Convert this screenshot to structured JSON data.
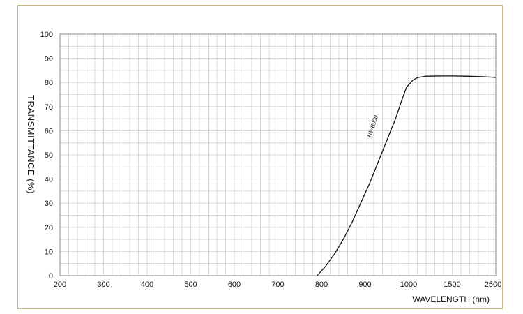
{
  "chart_data": {
    "type": "line",
    "title": "",
    "xlabel": "WAVELENGTH (nm)",
    "ylabel": "TRANSMITTANCE  (%)",
    "x_tick_labels": [
      "200",
      "300",
      "400",
      "500",
      "600",
      "700",
      "800",
      "900",
      "1000",
      "1500",
      "2500"
    ],
    "y_ticks": [
      0,
      10,
      20,
      30,
      40,
      50,
      60,
      70,
      80,
      90,
      100
    ],
    "ylim": [
      0,
      100
    ],
    "grid": true,
    "legend": "none",
    "series": [
      {
        "label": "HWB900",
        "color": "#111111",
        "points": [
          {
            "x": 790,
            "y": 0
          },
          {
            "x": 810,
            "y": 4
          },
          {
            "x": 830,
            "y": 9
          },
          {
            "x": 850,
            "y": 15
          },
          {
            "x": 870,
            "y": 22
          },
          {
            "x": 890,
            "y": 30
          },
          {
            "x": 910,
            "y": 38
          },
          {
            "x": 930,
            "y": 47
          },
          {
            "x": 950,
            "y": 56
          },
          {
            "x": 970,
            "y": 65
          },
          {
            "x": 985,
            "y": 73
          },
          {
            "x": 995,
            "y": 78
          },
          {
            "x": 1000,
            "y": 79
          },
          {
            "x": 1050,
            "y": 81
          },
          {
            "x": 1100,
            "y": 82
          },
          {
            "x": 1200,
            "y": 82.6
          },
          {
            "x": 1400,
            "y": 82.7
          },
          {
            "x": 1500,
            "y": 82.7
          },
          {
            "x": 1800,
            "y": 82.6
          },
          {
            "x": 2200,
            "y": 82.4
          },
          {
            "x": 2500,
            "y": 82.1
          }
        ]
      }
    ],
    "annotations": [
      {
        "text": "HWB900",
        "x": 920,
        "y": 57
      }
    ]
  }
}
